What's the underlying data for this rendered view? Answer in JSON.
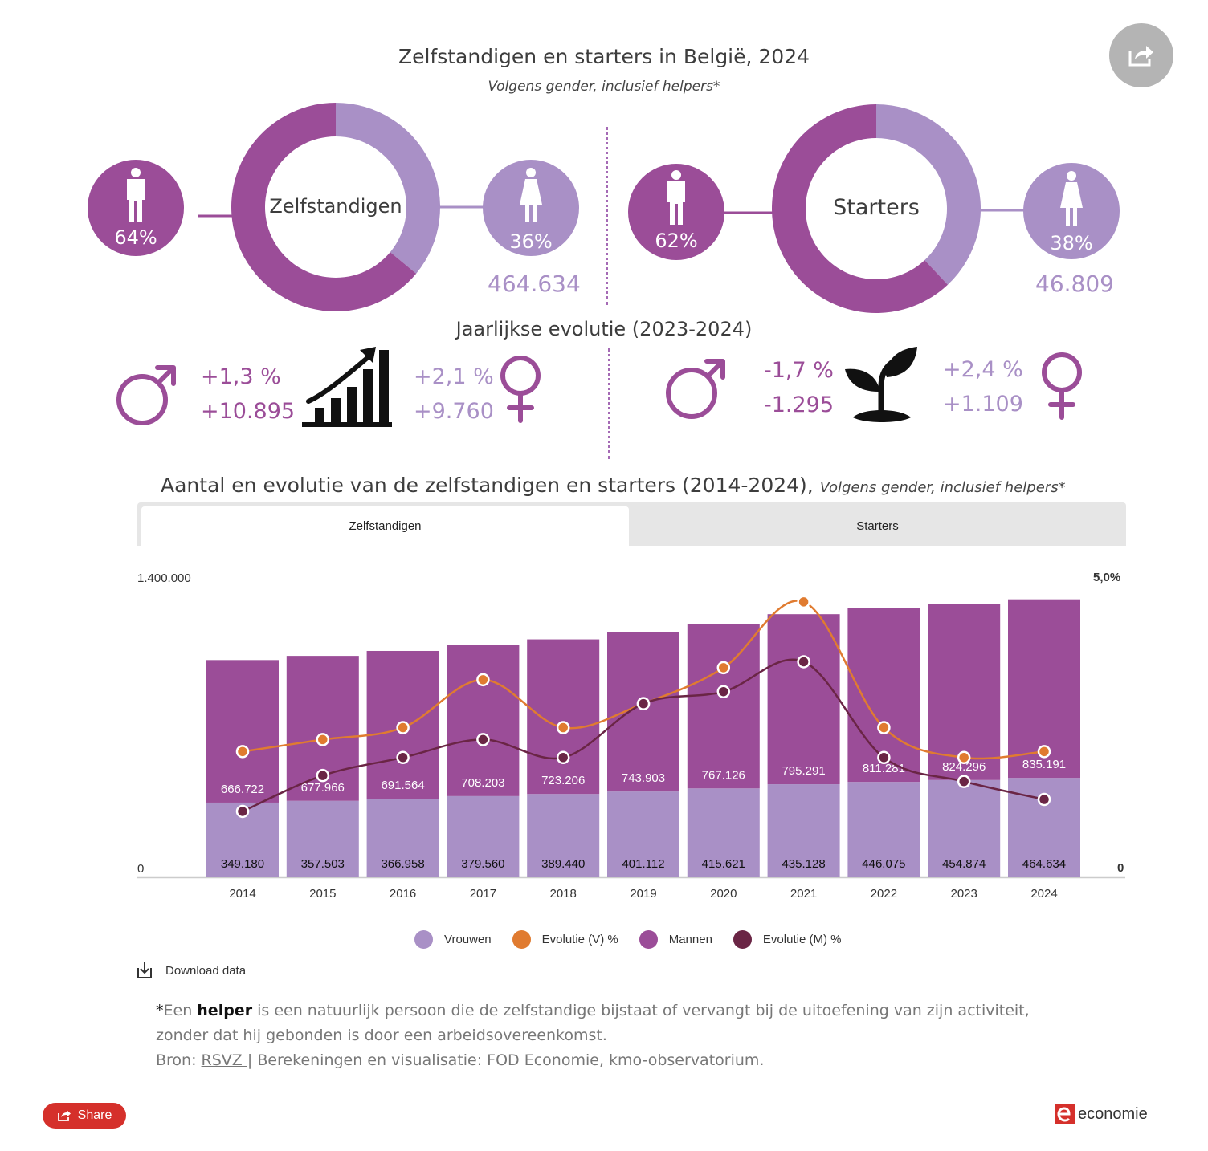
{
  "header": {
    "title": "Zelfstandigen en starters in België, 2024",
    "subtitle": "Volgens gender, inclusief helpers*"
  },
  "colors": {
    "men": "#9b4d98",
    "women": "#a990c6",
    "evo_women": "#e07b30",
    "evo_men": "#6a2545",
    "accent_red": "#d5302b"
  },
  "zelfstandigen": {
    "label": "Zelfstandigen",
    "men_pct": "64%",
    "women_pct": "36%",
    "men_share": 0.64,
    "women_share": 0.36,
    "women_total": "464.634"
  },
  "starters": {
    "label": "Starters",
    "men_pct": "62%",
    "women_pct": "38%",
    "men_share": 0.62,
    "women_share": 0.38,
    "women_total": "46.809"
  },
  "evolution": {
    "title": "Jaarlijkse evolutie (2023-2024)",
    "zelfstandigen": {
      "men_pct": "+1,3 %",
      "men_abs": "+10.895",
      "women_pct": "+2,1 %",
      "women_abs": "+9.760"
    },
    "starters": {
      "men_pct": "-1,7 %",
      "men_abs": "-1.295",
      "women_pct": "+2,4 %",
      "women_abs": "+1.109"
    }
  },
  "chart_section": {
    "title": "Aantal en evolutie van de zelfstandigen en starters (2014-2024),",
    "subtitle": "Volgens gender, inclusief helpers*",
    "tabs": [
      "Zelfstandigen",
      "Starters"
    ],
    "active_tab": "Zelfstandigen",
    "download_label": "Download data"
  },
  "chart_data": {
    "type": "bar",
    "stacked": true,
    "categories": [
      "2014",
      "2015",
      "2016",
      "2017",
      "2018",
      "2019",
      "2020",
      "2021",
      "2022",
      "2023",
      "2024"
    ],
    "y_left": {
      "min": 0,
      "max": 1400000,
      "min_label": "0",
      "max_label": "1.400.000"
    },
    "y_right": {
      "min": 0,
      "max": 5.0,
      "min_label": "0",
      "max_label": "5,0%"
    },
    "series": [
      {
        "name": "Vrouwen",
        "type": "bar",
        "axis": "left",
        "color": "#a990c6",
        "values": [
          349180,
          357503,
          366958,
          379560,
          389440,
          401112,
          415621,
          435128,
          446075,
          454874,
          464634
        ],
        "labels": [
          "349.180",
          "357.503",
          "366.958",
          "379.560",
          "389.440",
          "401.112",
          "415.621",
          "435.128",
          "446.075",
          "454.874",
          "464.634"
        ]
      },
      {
        "name": "Mannen",
        "type": "bar",
        "axis": "left",
        "color": "#9b4d98",
        "values": [
          666722,
          677966,
          691564,
          708203,
          723206,
          743903,
          767126,
          795291,
          811281,
          824296,
          835191
        ],
        "labels": [
          "666.722",
          "677.966",
          "691.564",
          "708.203",
          "723.206",
          "743.903",
          "767.126",
          "795.291",
          "811.281",
          "824.296",
          "835.191"
        ]
      },
      {
        "name": "Evolutie (V) %",
        "type": "line",
        "axis": "right",
        "color": "#e07b30",
        "values": [
          2.1,
          2.3,
          2.5,
          3.3,
          2.5,
          2.9,
          3.5,
          4.6,
          2.5,
          2.0,
          2.1
        ]
      },
      {
        "name": "Evolutie (M) %",
        "type": "line",
        "axis": "right",
        "color": "#6a2545",
        "values": [
          1.1,
          1.7,
          2.0,
          2.3,
          2.0,
          2.9,
          3.1,
          3.6,
          2.0,
          1.6,
          1.3
        ]
      }
    ],
    "legend": [
      "Vrouwen",
      "Evolutie (V) %",
      "Mannen",
      "Evolutie (M) %"
    ],
    "legend_position": "bottom",
    "grid": false
  },
  "footnote": {
    "star": "*",
    "pre": "Een ",
    "helper_word": "helper",
    "post": " is een natuurlijk persoon die de zelfstandige bijstaat of vervangt bij de uitoefening van zijn activiteit, zonder dat hij gebonden is door een arbeidsovereenkomst.",
    "source_label": "Bron: ",
    "source_link": "RSVZ ",
    "source_rest": "| Berekeningen en visualisatie: FOD Economie, kmo-observatorium."
  },
  "footer": {
    "share_label": "Share",
    "brand": "economie"
  },
  "icons": {
    "share_round": "share-icon",
    "man": "man-icon",
    "woman": "woman-icon",
    "male_symbol": "male-symbol-icon",
    "female_symbol": "female-symbol-icon",
    "growth_chart": "growth-chart-icon",
    "sprout": "sprout-icon",
    "download": "download-icon",
    "brand_logo": "economie-logo-icon"
  }
}
